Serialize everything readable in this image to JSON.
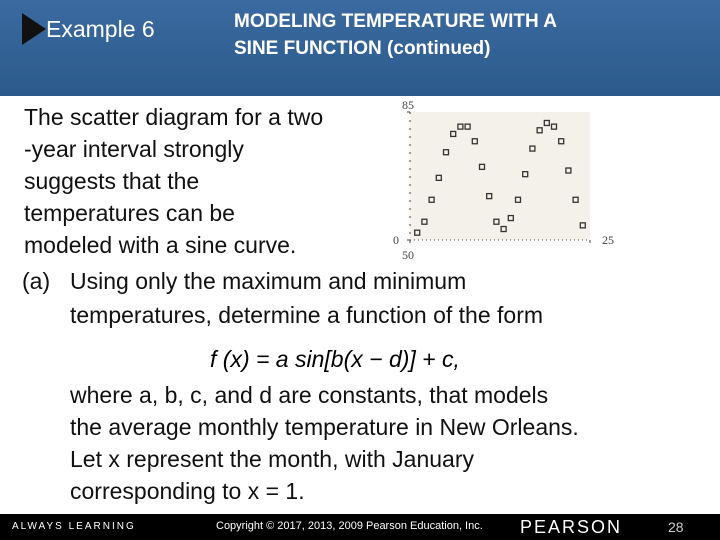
{
  "slide": {
    "header": {
      "example": "Example 6",
      "title_lines": [
        "MODELING TEMPERATURE WITH A",
        "SINE FUNCTION (continued)"
      ]
    },
    "intro_lines": [
      "The scatter diagram for a two",
      "-year interval strongly",
      "suggests that the",
      "temperatures can be",
      "modeled with a sine curve."
    ],
    "part_label": "(a)",
    "part_lines": [
      "Using only the maximum and minimum",
      "temperatures, determine a function of the form"
    ],
    "formula": "f (x) = a sin[b(x − d)] + c,",
    "after_lines": [
      "where a, b, c, and d are constants, that models",
      "the average monthly temperature in New Orleans.",
      "Let x represent the month, with January",
      "corresponding to x = 1."
    ],
    "footer": {
      "left": "ALWAYS LEARNING",
      "copyright": "Copyright © 2017, 2013, 2009 Pearson Education, Inc.",
      "brand": "PEARSON",
      "page": "28"
    }
  },
  "chart_data": {
    "type": "scatter",
    "x": [
      1,
      2,
      3,
      4,
      5,
      6,
      7,
      8,
      9,
      10,
      11,
      12,
      13,
      14,
      15,
      16,
      17,
      18,
      19,
      20,
      21,
      22,
      23,
      24
    ],
    "values": [
      52,
      55,
      61,
      67,
      74,
      79,
      81,
      81,
      77,
      70,
      62,
      55,
      53,
      56,
      61,
      68,
      75,
      80,
      82,
      81,
      77,
      69,
      61,
      54
    ],
    "color": "#333333",
    "xlim": [
      0,
      25
    ],
    "ylim": [
      50,
      85
    ],
    "xticks": [
      0,
      25
    ],
    "yticks": [
      50,
      85
    ]
  }
}
